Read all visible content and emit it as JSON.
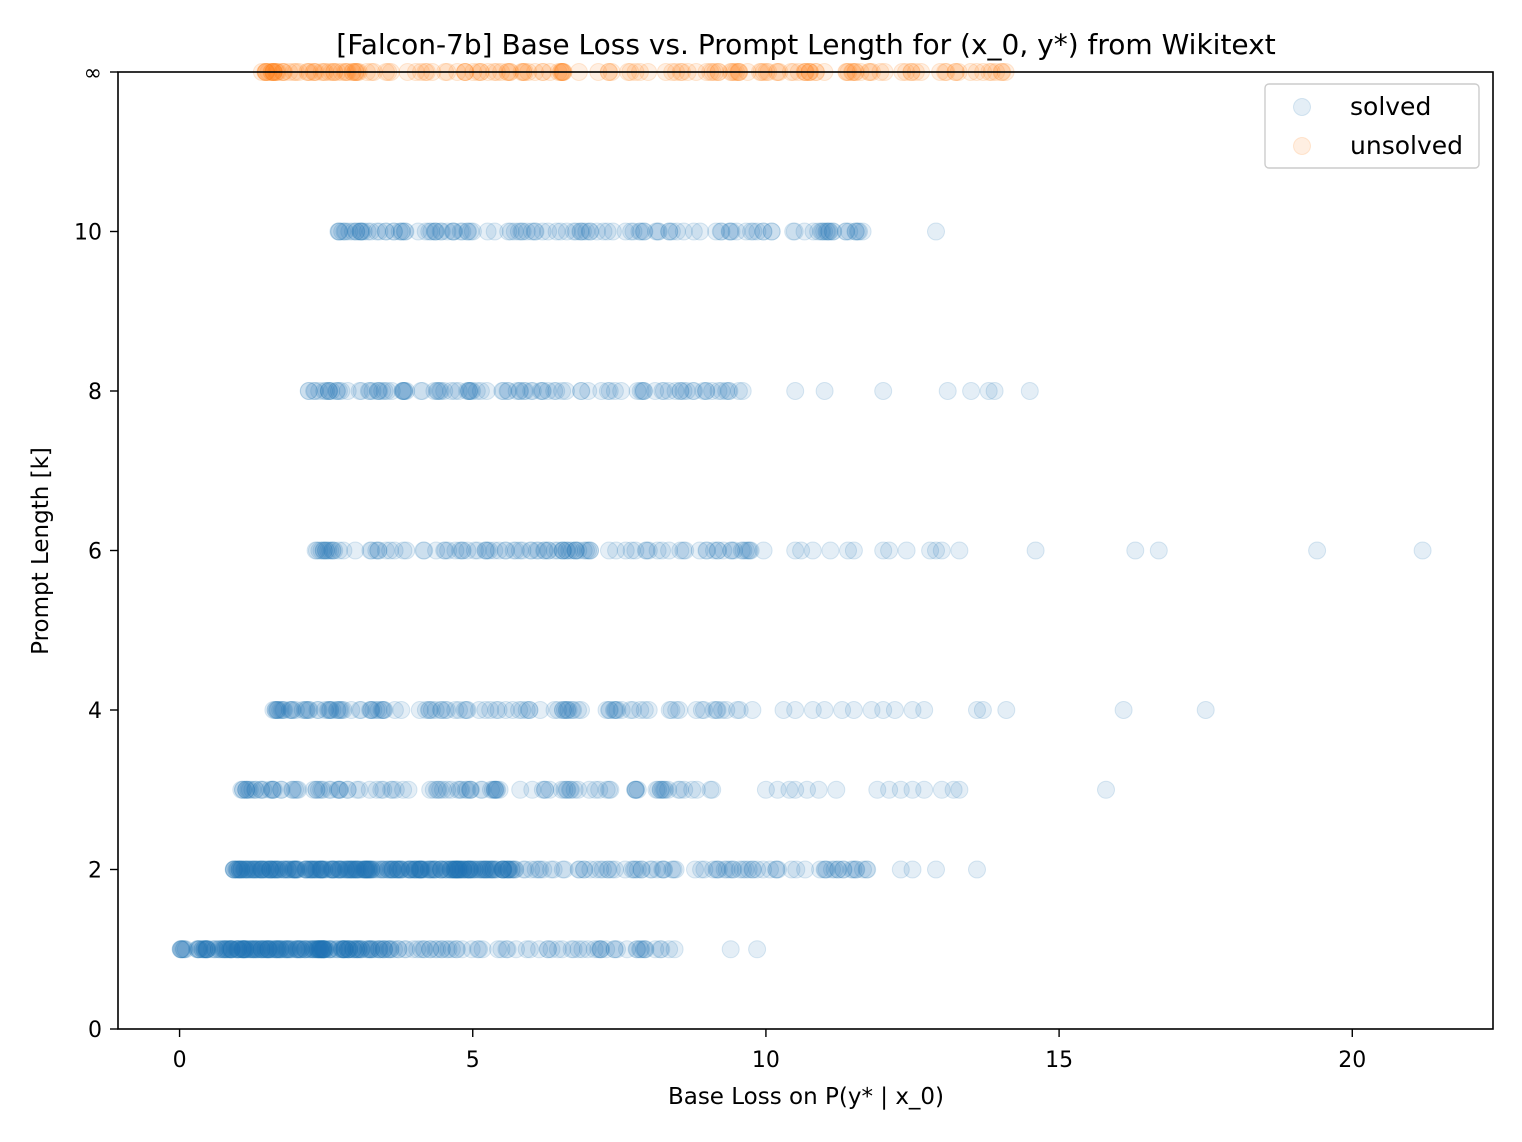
{
  "chart_data": {
    "type": "scatter",
    "title": "[Falcon-7b] Base Loss vs. Prompt Length for (x_0, y*) from Wikitext",
    "xlabel": "Base Loss on P(y* | x_0)",
    "ylabel": "Prompt Length [k]",
    "xlim": [
      -1.05,
      22.4
    ],
    "ylim": [
      0,
      12
    ],
    "x_ticks": [
      0,
      5,
      10,
      15,
      20
    ],
    "y_ticks": [
      0,
      2,
      4,
      6,
      8,
      10
    ],
    "y_tick_labels": [
      "0",
      "2",
      "4",
      "6",
      "8",
      "10"
    ],
    "infinity_row": {
      "y": 12,
      "label": "∞"
    },
    "grid": false,
    "legend_position": "top-right",
    "marker_alpha": 0.12,
    "colors": {
      "solved": "#1f77b4",
      "unsolved": "#ff7f0e"
    },
    "series": [
      {
        "name": "solved",
        "rows": [
          {
            "y": 1,
            "x_range": [
              0,
              8.5
            ],
            "dense_until": 3.5,
            "extra_x": [
              9.4,
              9.85
            ]
          },
          {
            "y": 2,
            "x_range": [
              0.9,
              11.8
            ],
            "dense_until": 5.7,
            "extra_x": [
              12.3,
              12.5,
              12.9,
              13.6
            ]
          },
          {
            "y": 3,
            "x_range": [
              1.05,
              9.4
            ],
            "dense_until": 0,
            "extra_x": [
              10.0,
              10.2,
              10.4,
              10.5,
              10.7,
              10.9,
              11.2,
              11.9,
              12.1,
              12.3,
              12.5,
              12.7,
              13.0,
              13.2,
              13.3,
              15.8
            ]
          },
          {
            "y": 4,
            "x_range": [
              1.6,
              10.0
            ],
            "dense_until": 0,
            "extra_x": [
              10.3,
              10.5,
              10.8,
              11.0,
              11.3,
              11.5,
              11.8,
              12.0,
              12.2,
              12.5,
              12.7,
              13.6,
              13.7,
              14.1,
              16.1,
              17.5
            ]
          },
          {
            "y": 6,
            "x_range": [
              2.3,
              10.0
            ],
            "dense_until": 0,
            "extra_x": [
              10.5,
              10.6,
              10.8,
              11.1,
              11.4,
              11.5,
              12.0,
              12.1,
              12.4,
              12.8,
              12.9,
              13.0,
              13.3,
              14.6,
              16.3,
              16.7,
              19.4,
              21.2
            ]
          },
          {
            "y": 8,
            "x_range": [
              2.2,
              9.9
            ],
            "dense_until": 0,
            "extra_x": [
              10.5,
              11.0,
              12.0,
              13.1,
              13.5,
              13.8,
              13.9,
              14.5
            ]
          },
          {
            "y": 10,
            "x_range": [
              2.7,
              12.0
            ],
            "dense_until": 0,
            "extra_x": [
              12.9
            ]
          }
        ]
      },
      {
        "name": "unsolved",
        "rows": [
          {
            "y": 12,
            "x_range": [
              1.4,
              14.1
            ],
            "dense_until": 0,
            "extra_x": []
          }
        ]
      }
    ]
  }
}
